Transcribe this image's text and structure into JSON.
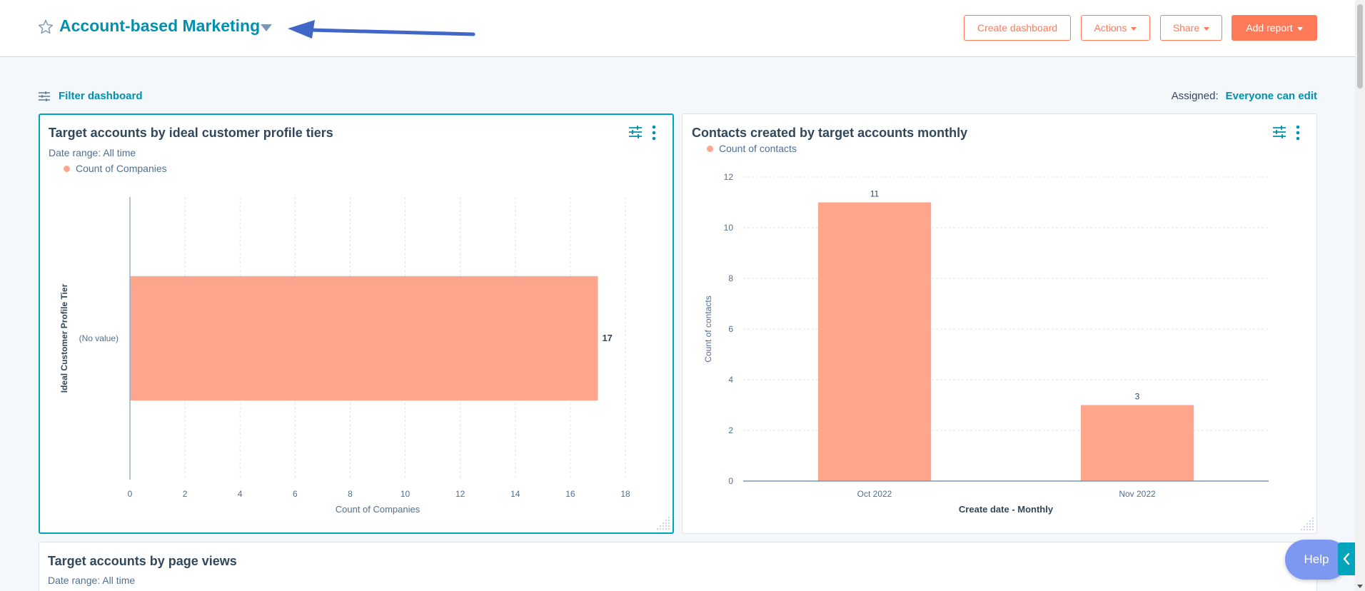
{
  "header": {
    "title": "Account-based Marketing",
    "buttons": {
      "create_dashboard": "Create dashboard",
      "actions": "Actions",
      "share": "Share",
      "add_report": "Add report"
    }
  },
  "filter": {
    "label": "Filter dashboard"
  },
  "assigned": {
    "label": "Assigned:",
    "value": "Everyone can edit"
  },
  "cards": {
    "card1": {
      "title": "Target accounts by ideal customer profile tiers",
      "date_range": "Date range: All time",
      "legend": "Count of Companies"
    },
    "card2": {
      "title": "Contacts created by target accounts monthly",
      "legend": "Count of contacts"
    },
    "card3": {
      "title": "Target accounts by page views",
      "date_range": "Date range: All time"
    }
  },
  "help": {
    "label": "Help"
  },
  "colors": {
    "bar": "#fea58e",
    "accent": "#0091ae",
    "primary": "#ff7a59",
    "selected_border": "#00a4bd"
  },
  "chart_data": [
    {
      "type": "bar",
      "orientation": "horizontal",
      "title": "Target accounts by ideal customer profile tiers",
      "categories": [
        "(No value)"
      ],
      "series": [
        {
          "name": "Count of Companies",
          "values": [
            17
          ]
        }
      ],
      "xlabel": "Count of Companies",
      "ylabel": "Ideal Customer Profile Tier",
      "xlim": [
        0,
        18
      ],
      "xticks": [
        "0",
        "2",
        "4",
        "6",
        "8",
        "10",
        "12",
        "14",
        "16",
        "18"
      ],
      "data_labels": [
        "17"
      ],
      "grid": true,
      "legend": "top-left"
    },
    {
      "type": "bar",
      "orientation": "vertical",
      "title": "Contacts created by target accounts monthly",
      "categories": [
        "Oct 2022",
        "Nov 2022"
      ],
      "series": [
        {
          "name": "Count of contacts",
          "values": [
            11,
            3
          ]
        }
      ],
      "xlabel": "Create date - Monthly",
      "ylabel": "Count of contacts",
      "ylim": [
        0,
        12
      ],
      "yticks": [
        "0",
        "2",
        "4",
        "6",
        "8",
        "10",
        "12"
      ],
      "data_labels": [
        "11",
        "3"
      ],
      "grid": true,
      "legend": "top-left"
    }
  ]
}
